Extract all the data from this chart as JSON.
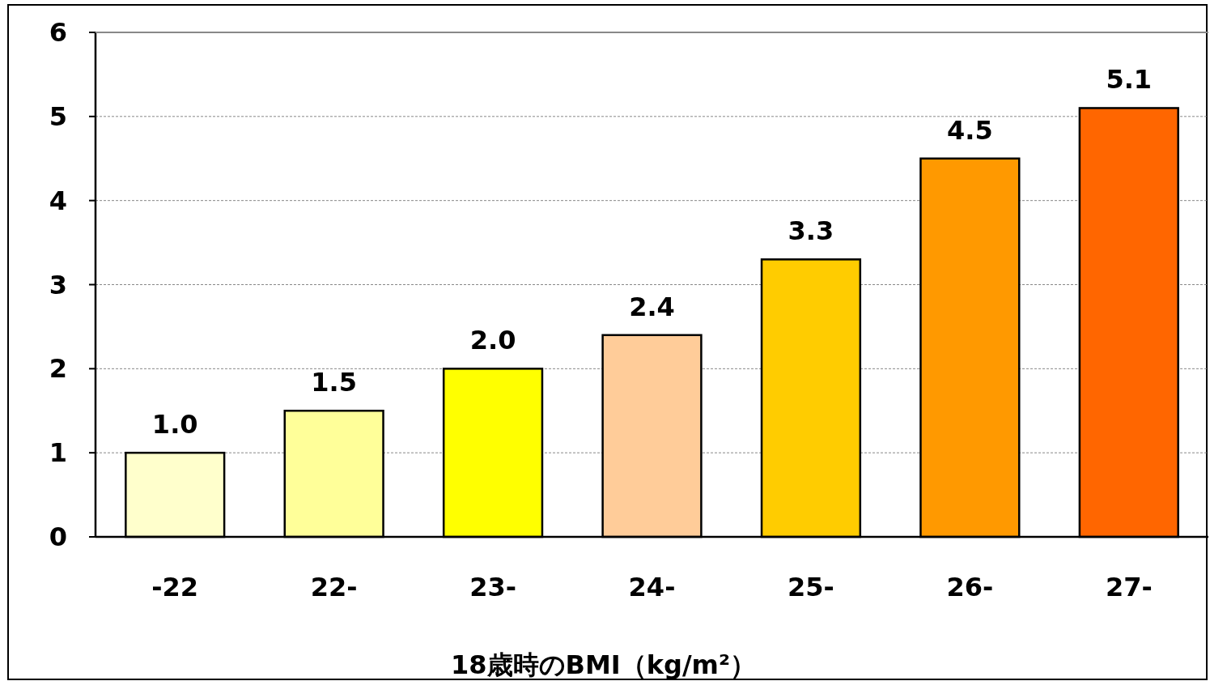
{
  "chart_data": {
    "type": "bar",
    "xlabel": "18歳時のBMI（kg/m²）",
    "categories": [
      "-22",
      "22-",
      "23-",
      "24-",
      "25-",
      "26-",
      "27-"
    ],
    "values": [
      1.0,
      1.5,
      2.0,
      2.4,
      3.3,
      4.5,
      5.1
    ],
    "value_labels": [
      "1.0",
      "1.5",
      "2.0",
      "2.4",
      "3.3",
      "4.5",
      "5.1"
    ],
    "colors": [
      "#ffffcc",
      "#ffff99",
      "#ffff00",
      "#ffcc99",
      "#ffcc00",
      "#ff9900",
      "#ff6600"
    ],
    "ylim": [
      0,
      6
    ],
    "yticks": [
      0,
      1,
      2,
      3,
      4,
      5,
      6
    ],
    "grid": "y"
  }
}
